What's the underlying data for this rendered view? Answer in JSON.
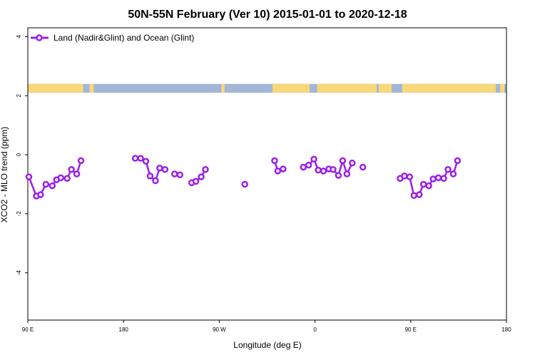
{
  "chart_data": {
    "type": "line",
    "title": "50N-55N February (Ver 10)   2015-01-01 to 2020-12-18",
    "xlabel": "Longitude (deg E)",
    "ylabel": "XCO2 - MLO trend (ppm)",
    "xlim": [
      90,
      540
    ],
    "ylim": [
      -5.6,
      4.3
    ],
    "x_ticks": [
      {
        "value": 90,
        "label": "90 E"
      },
      {
        "value": 180,
        "label": "180"
      },
      {
        "value": 270,
        "label": "90 W"
      },
      {
        "value": 360,
        "label": "0"
      },
      {
        "value": 450,
        "label": "90 E"
      },
      {
        "value": 540,
        "label": "180"
      }
    ],
    "y_ticks": [
      {
        "value": 4,
        "label": "4"
      },
      {
        "value": 2,
        "label": "2"
      },
      {
        "value": 0,
        "label": "0"
      },
      {
        "value": -2,
        "label": "-2"
      },
      {
        "value": -4,
        "label": "-4"
      }
    ],
    "grid": false,
    "legend_position": "top-left",
    "series": [
      {
        "name": "Land (Nadir&Glint) and Ocean (Glint)",
        "color": "#9b1fe8",
        "segments": [
          [
            [
              91,
              -0.75
            ],
            [
              98,
              -1.4
            ],
            [
              102,
              -1.35
            ],
            [
              107,
              -1.0
            ],
            [
              113,
              -1.05
            ],
            [
              117,
              -0.85
            ],
            [
              121,
              -0.78
            ],
            [
              127,
              -0.8
            ],
            [
              131,
              -0.5
            ],
            [
              136,
              -0.65
            ],
            [
              140,
              -0.2
            ]
          ],
          [
            [
              191,
              -0.12
            ],
            [
              196,
              -0.12
            ],
            [
              201,
              -0.22
            ],
            [
              205,
              -0.72
            ],
            [
              210,
              -0.88
            ],
            [
              214,
              -0.45
            ],
            [
              219,
              -0.5
            ]
          ],
          [
            [
              228,
              -0.65
            ],
            [
              233,
              -0.68
            ]
          ],
          [
            [
              244,
              -0.95
            ],
            [
              248,
              -0.9
            ],
            [
              253,
              -0.75
            ],
            [
              257,
              -0.5
            ]
          ],
          [
            [
              294,
              -1.0
            ]
          ],
          [
            [
              322,
              -0.2
            ],
            [
              325,
              -0.55
            ],
            [
              330,
              -0.48
            ]
          ],
          [
            [
              349,
              -0.42
            ],
            [
              354,
              -0.35
            ],
            [
              359,
              -0.15
            ],
            [
              363,
              -0.52
            ],
            [
              368,
              -0.55
            ],
            [
              373,
              -0.48
            ],
            [
              377,
              -0.5
            ],
            [
              382,
              -0.7
            ],
            [
              386,
              -0.2
            ],
            [
              390,
              -0.65
            ],
            [
              395,
              -0.28
            ]
          ],
          [
            [
              405,
              -0.42
            ]
          ],
          [
            [
              440,
              -0.8
            ],
            [
              444,
              -0.72
            ],
            [
              449,
              -0.75
            ],
            [
              453,
              -1.38
            ],
            [
              458,
              -1.35
            ],
            [
              462,
              -1.0
            ],
            [
              467,
              -1.05
            ],
            [
              471,
              -0.82
            ],
            [
              476,
              -0.78
            ],
            [
              481,
              -0.8
            ],
            [
              485,
              -0.5
            ],
            [
              490,
              -0.65
            ],
            [
              494,
              -0.2
            ]
          ]
        ]
      }
    ],
    "land_mask": {
      "y_range": [
        2.1,
        2.4
      ],
      "land_color": "#f7d87a",
      "ocean_color": "#a3b6d6",
      "land_longitude_ranges": [
        [
          90,
          142
        ],
        [
          148,
          152
        ],
        [
          272,
          275
        ],
        [
          320,
          355
        ],
        [
          362,
          418
        ],
        [
          420,
          432
        ],
        [
          442,
          530
        ],
        [
          534,
          538
        ]
      ]
    }
  }
}
